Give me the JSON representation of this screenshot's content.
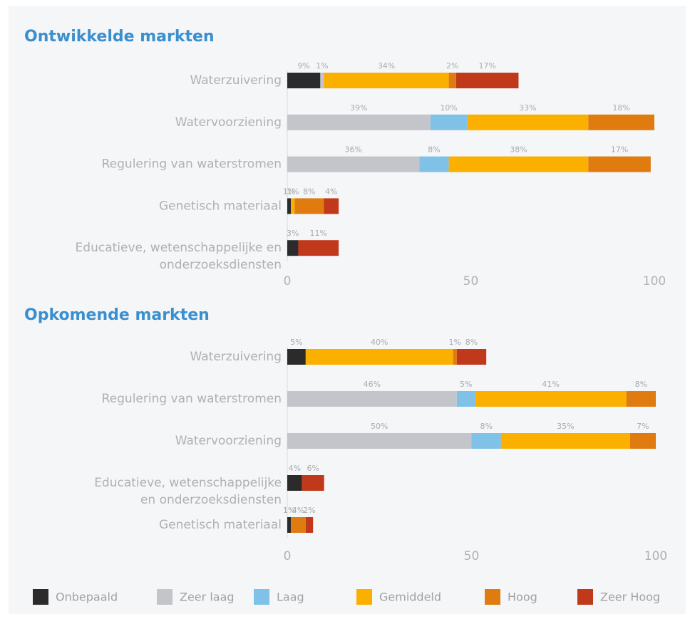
{
  "chart_data": [
    {
      "type": "stacked-bar-horizontal",
      "title": "Ontwikkelde markten",
      "categories": [
        "Waterzuivering",
        "Watervoorziening",
        "Regulering van waterstromen",
        "Genetisch materiaal",
        [
          "Educatieve, wetenschappelijke en",
          "onderzoeksdiensten"
        ]
      ],
      "series": [
        {
          "name": "Onbepaald",
          "color": "#2b2b2b",
          "values": [
            9,
            null,
            null,
            1,
            3
          ],
          "value_labels": [
            "9%",
            null,
            null,
            "1%",
            "3%"
          ]
        },
        {
          "name": "Zeer laag",
          "color": "#c3c5ca",
          "values": [
            1,
            39,
            36,
            null,
            null
          ],
          "value_labels": [
            "1%",
            "39%",
            "36%",
            null,
            null
          ]
        },
        {
          "name": "Laag",
          "color": "#7fc1e7",
          "values": [
            null,
            10,
            8,
            null,
            null
          ],
          "value_labels": [
            null,
            "10%",
            "8%",
            null,
            null
          ]
        },
        {
          "name": "Gemiddeld",
          "color": "#fbb000",
          "values": [
            34,
            33,
            38,
            1,
            null
          ],
          "value_labels": [
            "34%",
            "33%",
            "38%",
            "1%",
            null
          ]
        },
        {
          "name": "Hoog",
          "color": "#e07b10",
          "values": [
            2,
            18,
            17,
            8,
            null
          ],
          "value_labels": [
            "2%",
            "18%",
            "17%",
            "8%",
            null
          ]
        },
        {
          "name": "Zeer Hoog",
          "color": "#c0391b",
          "values": [
            17,
            null,
            null,
            4,
            11
          ],
          "value_labels": [
            "17%",
            null,
            null,
            "4%",
            "11%"
          ]
        }
      ],
      "xlim": [
        0,
        100
      ],
      "xticks": [
        0,
        50,
        100
      ]
    },
    {
      "type": "stacked-bar-horizontal",
      "title": "Opkomende markten",
      "categories": [
        "Waterzuivering",
        "Regulering van waterstromen",
        "Watervoorziening",
        [
          "Educatieve, wetenschappelijke",
          "en onderzoeksdiensten"
        ],
        "Genetisch materiaal"
      ],
      "series": [
        {
          "values": [
            5,
            null,
            null,
            4,
            1
          ],
          "value_labels": [
            "5%",
            null,
            null,
            "4%",
            "1%"
          ]
        },
        {
          "values": [
            null,
            46,
            50,
            null,
            null
          ],
          "value_labels": [
            null,
            "46%",
            "50%",
            null,
            null
          ]
        },
        {
          "values": [
            null,
            5,
            8,
            null,
            null
          ],
          "value_labels": [
            null,
            "5%",
            "8%",
            null,
            null
          ]
        },
        {
          "values": [
            40,
            41,
            35,
            null,
            null
          ],
          "value_labels": [
            "40%",
            "41%",
            "35%",
            null,
            null
          ]
        },
        {
          "values": [
            1,
            8,
            7,
            null,
            4
          ],
          "value_labels": [
            "1%",
            "8%",
            "7%",
            null,
            "4%"
          ]
        },
        {
          "values": [
            8,
            null,
            null,
            6,
            2
          ],
          "value_labels": [
            "8%",
            null,
            null,
            "6%",
            "2%"
          ]
        }
      ],
      "xlim": [
        0,
        100
      ],
      "xticks": [
        0,
        50,
        100
      ]
    }
  ]
}
